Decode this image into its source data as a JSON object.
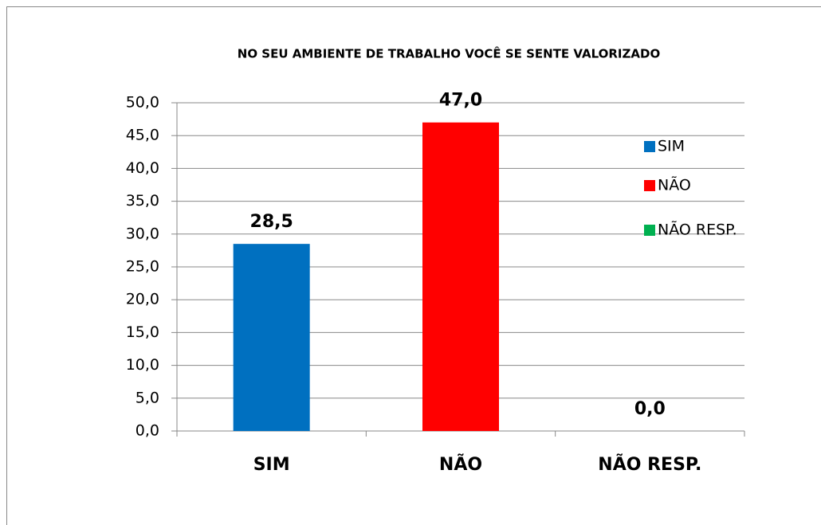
{
  "chart_data": {
    "type": "bar",
    "title": "NO SEU AMBIENTE DE TRABALHO VOCÊ SE SENTE VALORIZADO",
    "categories": [
      "SIM",
      "NÃO",
      "NÃO RESP."
    ],
    "values": [
      28.5,
      47.0,
      0.0
    ],
    "value_labels": [
      "28,5",
      "47,0",
      "0,0"
    ],
    "colors": [
      "#0070c0",
      "#ff0000",
      "#00b050"
    ],
    "ylim": [
      0,
      50
    ],
    "yticks": [
      {
        "value": 0,
        "label": "0,0"
      },
      {
        "value": 5,
        "label": "5,0"
      },
      {
        "value": 10,
        "label": "10,0"
      },
      {
        "value": 15,
        "label": "15,0"
      },
      {
        "value": 20,
        "label": "20,0"
      },
      {
        "value": 25,
        "label": "25,0"
      },
      {
        "value": 30,
        "label": "30,0"
      },
      {
        "value": 35,
        "label": "35,0"
      },
      {
        "value": 40,
        "label": "40,0"
      },
      {
        "value": 45,
        "label": "45,0"
      },
      {
        "value": 50,
        "label": "50,0"
      }
    ],
    "grid": true,
    "legend": "right"
  }
}
